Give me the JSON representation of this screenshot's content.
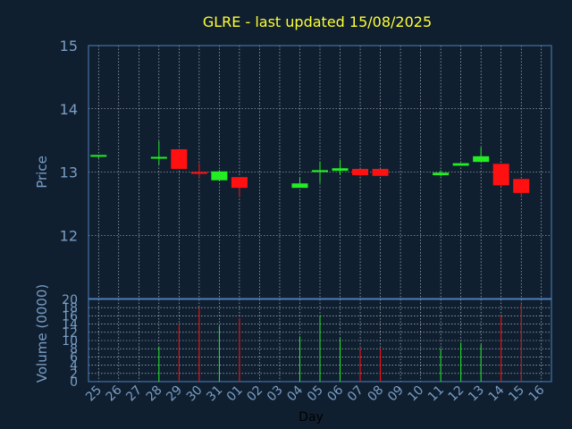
{
  "title": "GLRE - last updated 15/08/2025",
  "colors": {
    "background": "#0f1f30",
    "frame": "#4f7fb8",
    "grid": "#ffffff",
    "text": "#7a9ec5",
    "title": "#ffff33",
    "up": "#22ee22",
    "down": "#ff1111"
  },
  "chart_data": [
    {
      "type": "candlestick",
      "ylabel": "Price",
      "ylim": [
        11,
        15
      ],
      "yticks": [
        12,
        13,
        14,
        15
      ],
      "grid": true,
      "x": [
        "25",
        "28",
        "29",
        "30",
        "31",
        "01",
        "04",
        "05",
        "06",
        "07",
        "08",
        "11",
        "12",
        "13",
        "14",
        "15"
      ],
      "open": [
        13.25,
        13.22,
        13.36,
        13.0,
        12.87,
        12.92,
        12.75,
        13.0,
        13.02,
        13.05,
        13.05,
        12.95,
        13.1,
        13.16,
        13.13,
        12.89
      ],
      "high": [
        13.27,
        13.49,
        13.36,
        13.14,
        13.03,
        12.92,
        12.92,
        13.17,
        13.19,
        13.05,
        13.05,
        13.03,
        13.14,
        13.39,
        13.13,
        12.89
      ],
      "low": [
        13.22,
        13.12,
        13.05,
        12.91,
        12.87,
        12.61,
        12.75,
        12.83,
        12.95,
        12.93,
        12.94,
        12.93,
        13.1,
        13.16,
        12.77,
        12.62
      ],
      "close": [
        13.27,
        13.24,
        13.05,
        12.98,
        13.01,
        12.75,
        12.82,
        13.03,
        13.06,
        12.95,
        12.94,
        12.99,
        13.14,
        13.25,
        12.79,
        12.67
      ]
    },
    {
      "type": "bar",
      "ylabel": "Volume (0000)",
      "xlabel": "Day",
      "ylim": [
        0,
        20
      ],
      "yticks": [
        0,
        2,
        4,
        6,
        8,
        10,
        12,
        14,
        16,
        18,
        20
      ],
      "grid": true,
      "categories": [
        "25",
        "26",
        "27",
        "28",
        "29",
        "30",
        "31",
        "01",
        "02",
        "03",
        "04",
        "05",
        "06",
        "07",
        "08",
        "09",
        "10",
        "11",
        "12",
        "13",
        "14",
        "15",
        "16"
      ],
      "values": [
        0,
        0,
        0,
        8.5,
        14,
        18,
        13.5,
        15.5,
        0,
        0,
        11,
        16,
        10.5,
        8,
        8,
        0,
        0,
        8,
        9.5,
        9,
        16,
        19,
        0
      ],
      "direction": [
        "",
        "",
        "",
        "up",
        "down",
        "down",
        "up",
        "down",
        "",
        "",
        "up",
        "up",
        "up",
        "down",
        "down",
        "",
        "",
        "up",
        "up",
        "up",
        "down",
        "down",
        ""
      ]
    }
  ]
}
